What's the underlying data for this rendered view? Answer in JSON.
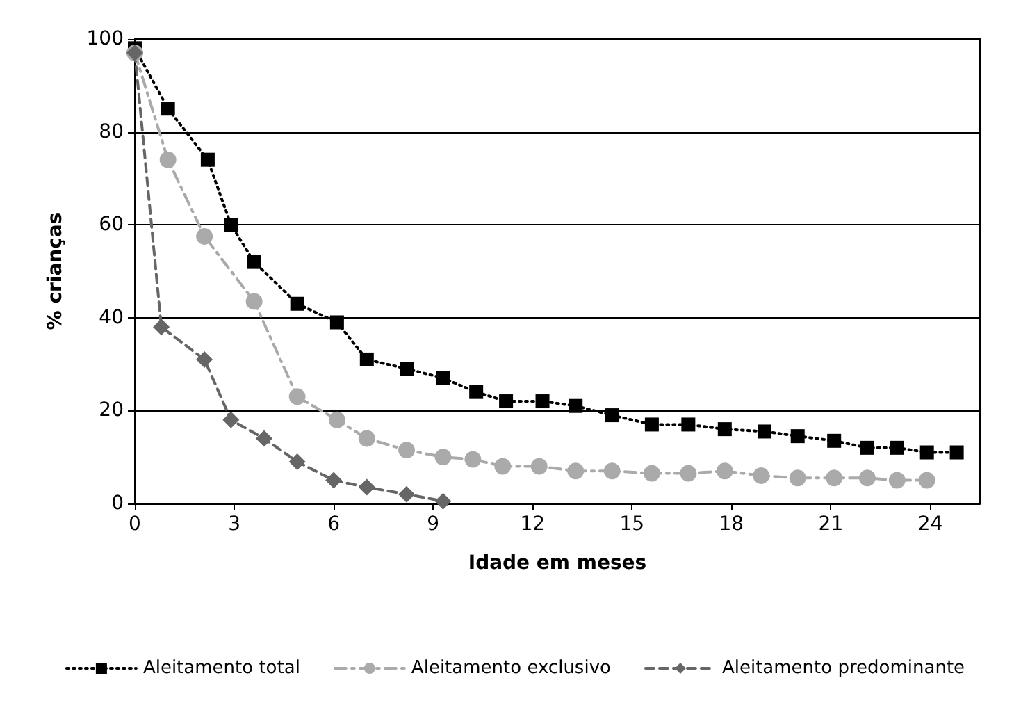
{
  "chart_data": {
    "type": "line",
    "xlabel": "Idade em meses",
    "ylabel": "% crianças",
    "xlim": [
      0,
      25.5
    ],
    "xticks": [
      0,
      3,
      6,
      9,
      12,
      15,
      18,
      21,
      24
    ],
    "ylim": [
      0,
      100
    ],
    "yticks": [
      0,
      20,
      40,
      60,
      80,
      100
    ],
    "grid": "y",
    "legend": "bottom",
    "series": [
      {
        "name": "Aleitamento total",
        "color": "#000000",
        "marker": "square",
        "line_style": "dotted",
        "x": [
          0,
          1.0,
          2.2,
          2.9,
          3.6,
          4.9,
          6.1,
          7.0,
          8.2,
          9.3,
          10.3,
          11.2,
          12.3,
          13.3,
          14.4,
          15.6,
          16.7,
          17.8,
          19.0,
          20.0,
          21.1,
          22.1,
          23.0,
          23.9,
          24.8
        ],
        "values": [
          98,
          85,
          74,
          60,
          52,
          43,
          39,
          31,
          29,
          27,
          24,
          22,
          22,
          21,
          19,
          17,
          17,
          16,
          15.5,
          14.5,
          13.5,
          12,
          12,
          11,
          11
        ]
      },
      {
        "name": "Aleitamento exclusivo",
        "color": "#aaaaaa",
        "marker": "circle",
        "line_style": "dashdot",
        "x": [
          0,
          1.0,
          2.1,
          3.6,
          4.9,
          6.1,
          7.0,
          8.2,
          9.3,
          10.2,
          11.1,
          12.2,
          13.3,
          14.4,
          15.6,
          16.7,
          17.8,
          18.9,
          20.0,
          21.1,
          22.1,
          23.0,
          23.9
        ],
        "values": [
          97,
          74,
          57.5,
          43.5,
          23,
          18,
          14,
          11.5,
          10,
          9.5,
          8,
          8,
          7,
          7,
          6.5,
          6.5,
          7,
          6,
          5.5,
          5.5,
          5.5,
          5,
          5
        ]
      },
      {
        "name": "Aleitamento predominante",
        "color": "#666666",
        "marker": "diamond",
        "line_style": "dashed",
        "x": [
          0,
          0.8,
          2.1,
          2.9,
          3.9,
          4.9,
          6.0,
          7.0,
          8.2,
          9.3
        ],
        "values": [
          97,
          38,
          31,
          18,
          14,
          9,
          5,
          3.5,
          2,
          0.5
        ]
      }
    ]
  }
}
